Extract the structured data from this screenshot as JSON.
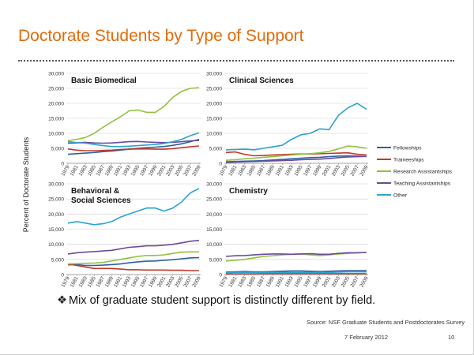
{
  "slide": {
    "title": "Doctorate Students  by Type of Support",
    "bullet_mark": "❖",
    "bullet_text": "Mix of graduate student support is distinctly different by field.",
    "source": "Source: NSF Graduate Students and Postdoctorates Survey",
    "date": "7 February 2012",
    "page_number": "10"
  },
  "colors": {
    "title": "#e36c0a",
    "Fellowships": "#2e5fa6",
    "Traineeships": "#c0392b",
    "Research Assistantships": "#92c13f",
    "Teaching Assistantships": "#6a4b9c",
    "Other": "#2ba3d1"
  },
  "chart_data": {
    "type": "line",
    "ylabel": "Percent of Doctorate Students",
    "ylim": [
      0,
      30000
    ],
    "yticks": [
      "0",
      "5,000",
      "10,000",
      "15,000",
      "20,000",
      "25,000",
      "30,000"
    ],
    "x": [
      1979,
      1981,
      1983,
      1985,
      1987,
      1989,
      1991,
      1993,
      1995,
      1997,
      1999,
      2001,
      2003,
      2005,
      2007,
      2009
    ],
    "series_names": [
      "Fellowships",
      "Traineeships",
      "Research Assistantships",
      "Teaching Assistantships",
      "Other"
    ],
    "legend_position": "right",
    "grid": "horizontal",
    "panels": [
      {
        "title": "Basic Biomedical",
        "series": [
          {
            "name": "Fellowships",
            "values": [
              3000,
              3200,
              3400,
              3600,
              3900,
              4100,
              4400,
              4700,
              5000,
              5200,
              5400,
              5600,
              6000,
              6500,
              7200,
              8000
            ]
          },
          {
            "name": "Traineeships",
            "values": [
              4800,
              4400,
              4200,
              4200,
              4300,
              4400,
              4600,
              4700,
              4800,
              4800,
              4700,
              4700,
              4900,
              5200,
              5500,
              5800
            ]
          },
          {
            "name": "Research Assistantships",
            "values": [
              7500,
              8000,
              8600,
              10000,
              12000,
              13800,
              15500,
              17500,
              17800,
              17000,
              17000,
              19000,
              22000,
              24000,
              25000,
              25200
            ]
          },
          {
            "name": "Teaching Assistantships",
            "values": [
              6700,
              6800,
              7000,
              6800,
              6700,
              6800,
              7000,
              7200,
              7300,
              7100,
              7000,
              6900,
              7000,
              7200,
              7500,
              7600
            ]
          },
          {
            "name": "Other",
            "values": [
              7200,
              6900,
              6700,
              6300,
              5900,
              5600,
              5600,
              5700,
              5900,
              6100,
              6300,
              6600,
              7200,
              8000,
              9200,
              10200
            ]
          }
        ]
      },
      {
        "title": "Clinical Sciences",
        "series": [
          {
            "name": "Fellowships",
            "values": [
              500,
              600,
              700,
              800,
              900,
              1100,
              1300,
              1500,
              1700,
              1900,
              2000,
              2200,
              2400,
              2500,
              2400,
              2300
            ]
          },
          {
            "name": "Traineeships",
            "values": [
              3600,
              3800,
              3000,
              2500,
              2600,
              2800,
              2900,
              3000,
              3100,
              3100,
              3200,
              3300,
              3400,
              3500,
              3000,
              2800
            ]
          },
          {
            "name": "Research Assistantships",
            "values": [
              1000,
              1200,
              1500,
              1700,
              2000,
              2200,
              2500,
              2800,
              3000,
              3200,
              3500,
              4000,
              4800,
              5800,
              5500,
              5000
            ]
          },
          {
            "name": "Teaching Assistantships",
            "values": [
              300,
              400,
              500,
              600,
              700,
              800,
              900,
              1000,
              1200,
              1300,
              1400,
              1600,
              1900,
              2100,
              2200,
              2300
            ]
          },
          {
            "name": "Other",
            "values": [
              4500,
              4600,
              4700,
              4500,
              5000,
              5500,
              6000,
              8000,
              9500,
              10000,
              11500,
              11200,
              16000,
              18500,
              20000,
              18000
            ]
          }
        ]
      },
      {
        "title": "Behavioral & Social Sciences",
        "title_lines": [
          "Behavioral &",
          "Social Sciences"
        ],
        "series": [
          {
            "name": "Fellowships",
            "values": [
              3200,
              3300,
              3000,
              3000,
              3100,
              3300,
              3500,
              3900,
              4200,
              4400,
              4500,
              4700,
              4900,
              5200,
              5500,
              5600
            ]
          },
          {
            "name": "Traineeships",
            "values": [
              3500,
              3000,
              2500,
              2000,
              2000,
              2000,
              1800,
              1600,
              1600,
              1500,
              1500,
              1500,
              1400,
              1400,
              1300,
              1300
            ]
          },
          {
            "name": "Research Assistantships",
            "values": [
              3500,
              3600,
              3700,
              3800,
              4000,
              4500,
              5000,
              5500,
              6000,
              6300,
              6300,
              6500,
              7000,
              7400,
              7500,
              7500
            ]
          },
          {
            "name": "Teaching Assistantships",
            "values": [
              6800,
              7200,
              7400,
              7600,
              7800,
              8000,
              8500,
              9000,
              9200,
              9500,
              9500,
              9700,
              10000,
              10500,
              11000,
              11300
            ]
          },
          {
            "name": "Other",
            "values": [
              17000,
              17500,
              17000,
              16500,
              16800,
              17500,
              19000,
              20000,
              21000,
              22000,
              22000,
              21000,
              22000,
              24000,
              27000,
              28500
            ]
          }
        ]
      },
      {
        "title": "Chemistry",
        "series": [
          {
            "name": "Fellowships",
            "values": [
              800,
              900,
              1000,
              900,
              900,
              1000,
              1100,
              1200,
              1200,
              1100,
              1000,
              1100,
              1200,
              1300,
              1300,
              1300
            ]
          },
          {
            "name": "Traineeships",
            "values": [
              200,
              200,
              200,
              200,
              300,
              300,
              300,
              300,
              300,
              300,
              300,
              300,
              300,
              300,
              300,
              300
            ]
          },
          {
            "name": "Research Assistantships",
            "values": [
              4500,
              4700,
              5000,
              5500,
              6000,
              6200,
              6500,
              6700,
              6800,
              6500,
              6300,
              6500,
              6800,
              7000,
              7200,
              7300
            ]
          },
          {
            "name": "Teaching Assistantships",
            "values": [
              6000,
              6200,
              6300,
              6500,
              6700,
              6800,
              6800,
              6700,
              6800,
              6900,
              6700,
              6700,
              7000,
              7200,
              7200,
              7300
            ]
          },
          {
            "name": "Other",
            "values": [
              600,
              700,
              700,
              700,
              700,
              700,
              700,
              700,
              700,
              700,
              700,
              700,
              800,
              900,
              900,
              900
            ]
          }
        ]
      }
    ]
  }
}
